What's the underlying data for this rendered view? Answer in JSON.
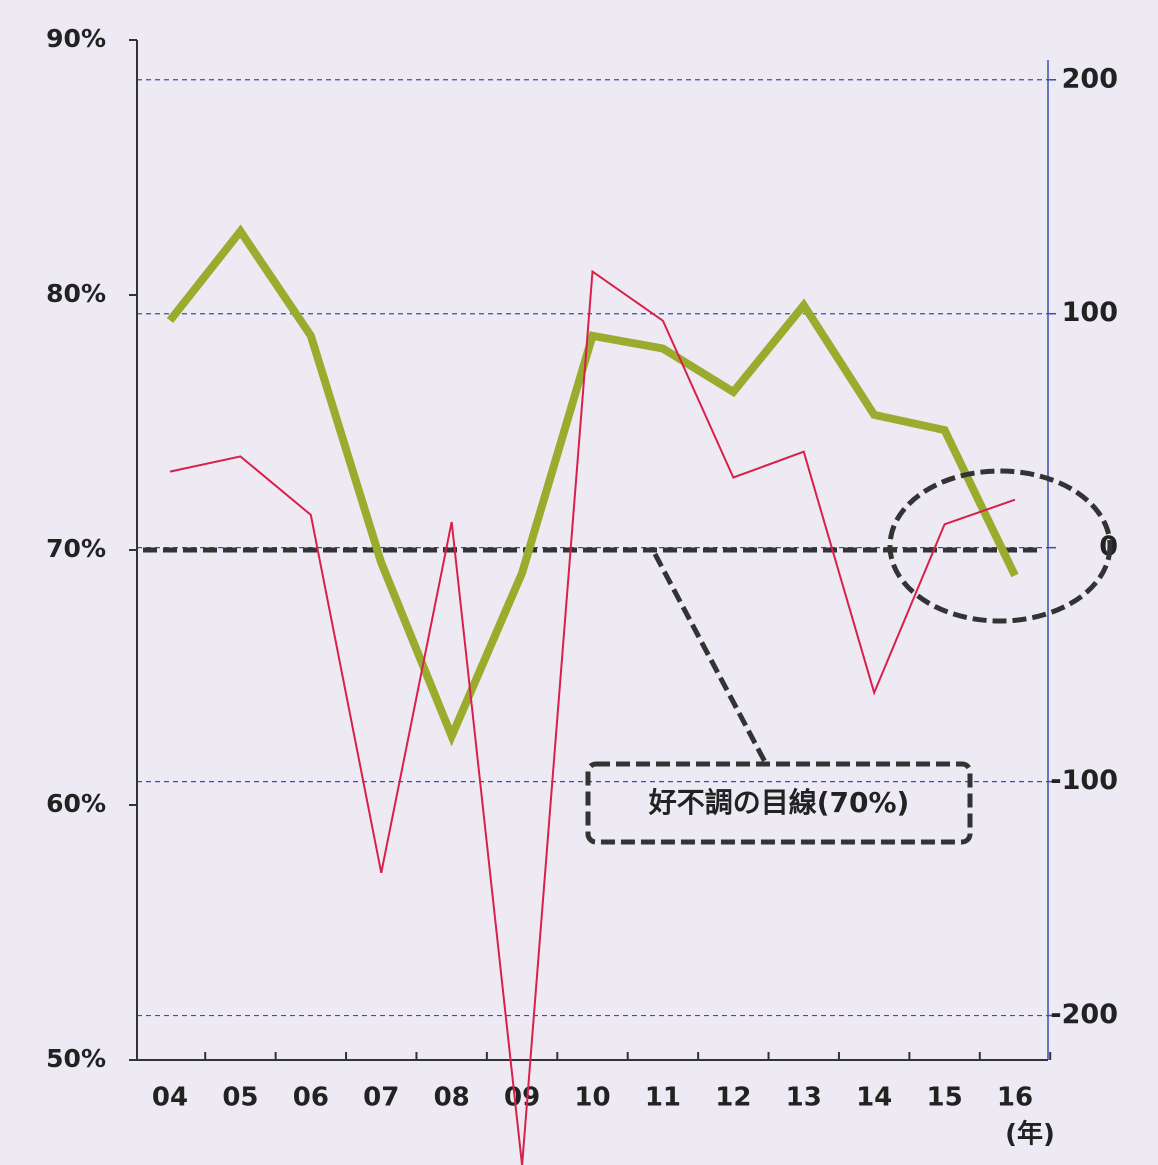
{
  "chart_data": {
    "type": "line",
    "categories": [
      "04",
      "05",
      "06",
      "07",
      "08",
      "09",
      "10",
      "11",
      "12",
      "13",
      "14",
      "15",
      "16"
    ],
    "x_label": "(年)",
    "series": [
      {
        "color": "#9aac2e",
        "values": [
          79.0,
          82.5,
          78.4,
          69.5,
          62.7,
          69.1,
          78.4,
          77.9,
          76.2,
          79.6,
          75.3,
          74.7,
          69.0
        ]
      },
      {
        "color": "#d8204a",
        "axis": "y2",
        "values": [
          32.5,
          39,
          14,
          -139,
          11,
          -264,
          118,
          97,
          30,
          41,
          -62,
          10,
          20.5
        ]
      }
    ],
    "ylim": [
      50,
      90
    ],
    "yticks": [
      {
        "value": 50,
        "label": "50%"
      },
      {
        "value": 60,
        "label": "60%"
      },
      {
        "value": 70,
        "label": "70%"
      },
      {
        "value": 80,
        "label": "80%"
      },
      {
        "value": 90,
        "label": "90%"
      }
    ],
    "y2lim": [
      -219,
      217
    ],
    "y2ticks": [
      -200,
      -100,
      0,
      100,
      200
    ],
    "grid": "y2",
    "reference_line": {
      "value": 70,
      "label": "好不調の目線(70%)"
    }
  }
}
